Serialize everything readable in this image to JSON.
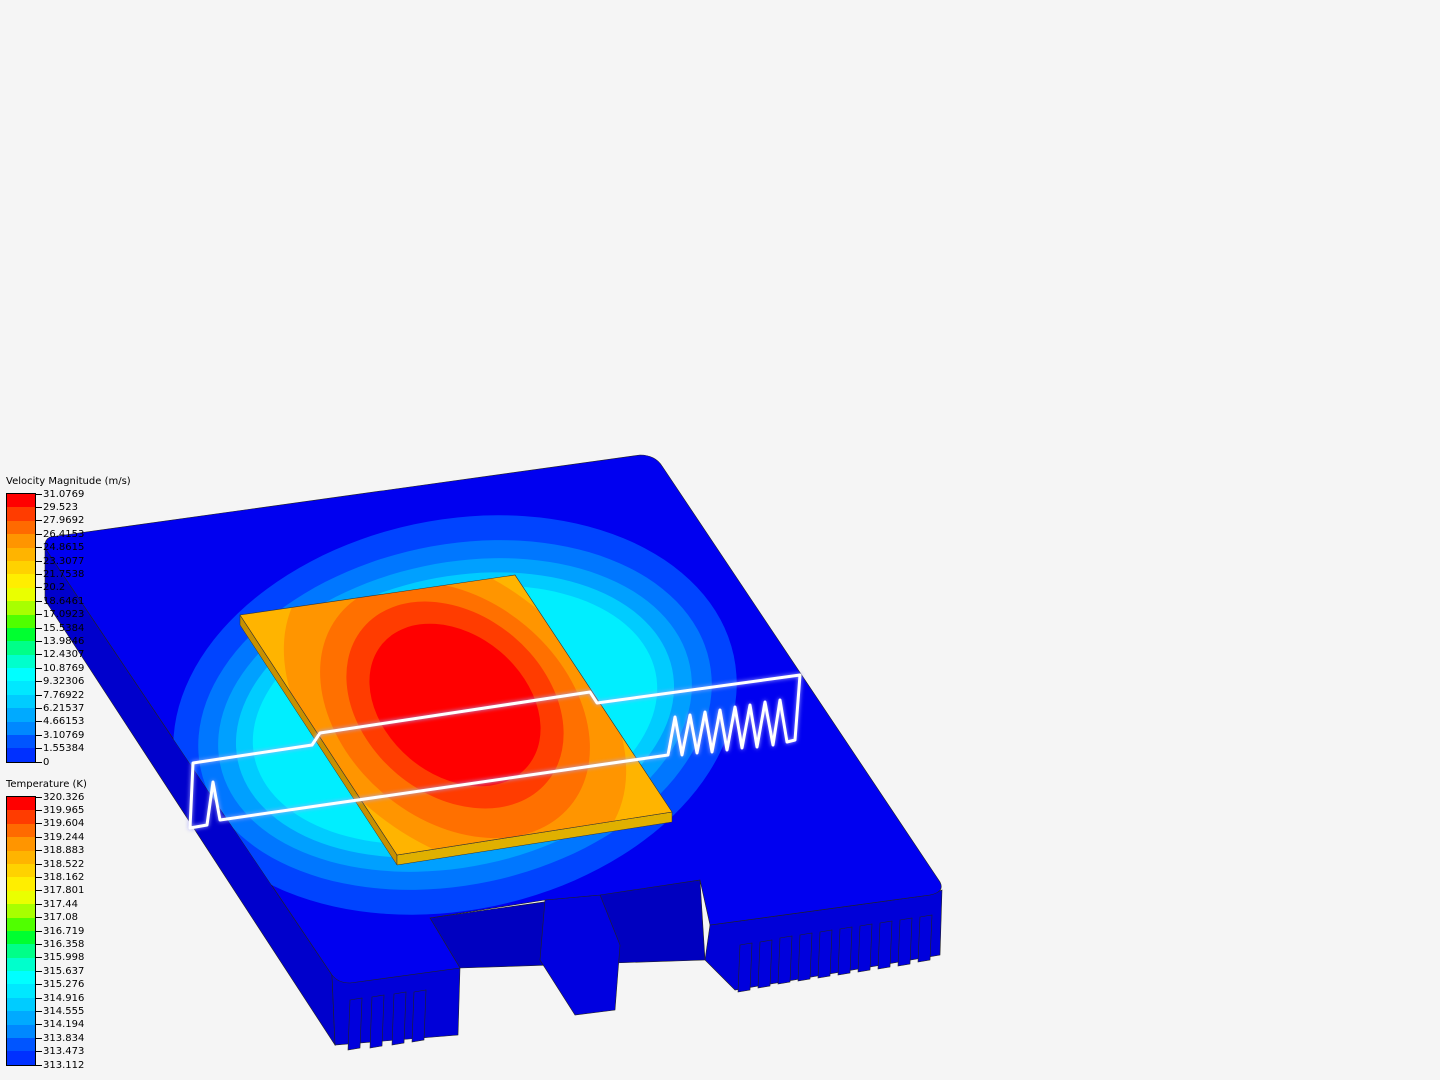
{
  "viewport": {
    "description_colors": {
      "background": "#f5f5f5",
      "plate": "#0000ee",
      "chip_side": "#d9a400"
    }
  },
  "legends": [
    {
      "title": "Velocity Magnitude (m/s)",
      "labels": [
        "31.0769",
        "29.523",
        "27.9692",
        "26.4153",
        "24.8615",
        "23.3077",
        "21.7538",
        "20.2",
        "18.6461",
        "17.0923",
        "15.5384",
        "13.9846",
        "12.4307",
        "10.8769",
        "9.32306",
        "7.76922",
        "6.21537",
        "4.66153",
        "3.10769",
        "1.55384",
        "0"
      ]
    },
    {
      "title": "Temperature (K)",
      "labels": [
        "320.326",
        "319.965",
        "319.604",
        "319.244",
        "318.883",
        "318.522",
        "318.162",
        "317.801",
        "317.44",
        "317.08",
        "316.719",
        "316.358",
        "315.998",
        "315.637",
        "315.276",
        "314.916",
        "314.555",
        "314.194",
        "313.834",
        "313.473",
        "313.112"
      ]
    }
  ],
  "colormap": [
    "#ff0000",
    "#ff3c00",
    "#ff6a00",
    "#ff9500",
    "#ffb400",
    "#ffd200",
    "#ffee00",
    "#eaff00",
    "#a8ff00",
    "#50ff00",
    "#00ff30",
    "#00ff88",
    "#00ffcc",
    "#00ffff",
    "#00e8ff",
    "#00ccff",
    "#00aaff",
    "#0088ff",
    "#0055ff",
    "#0030ff"
  ]
}
